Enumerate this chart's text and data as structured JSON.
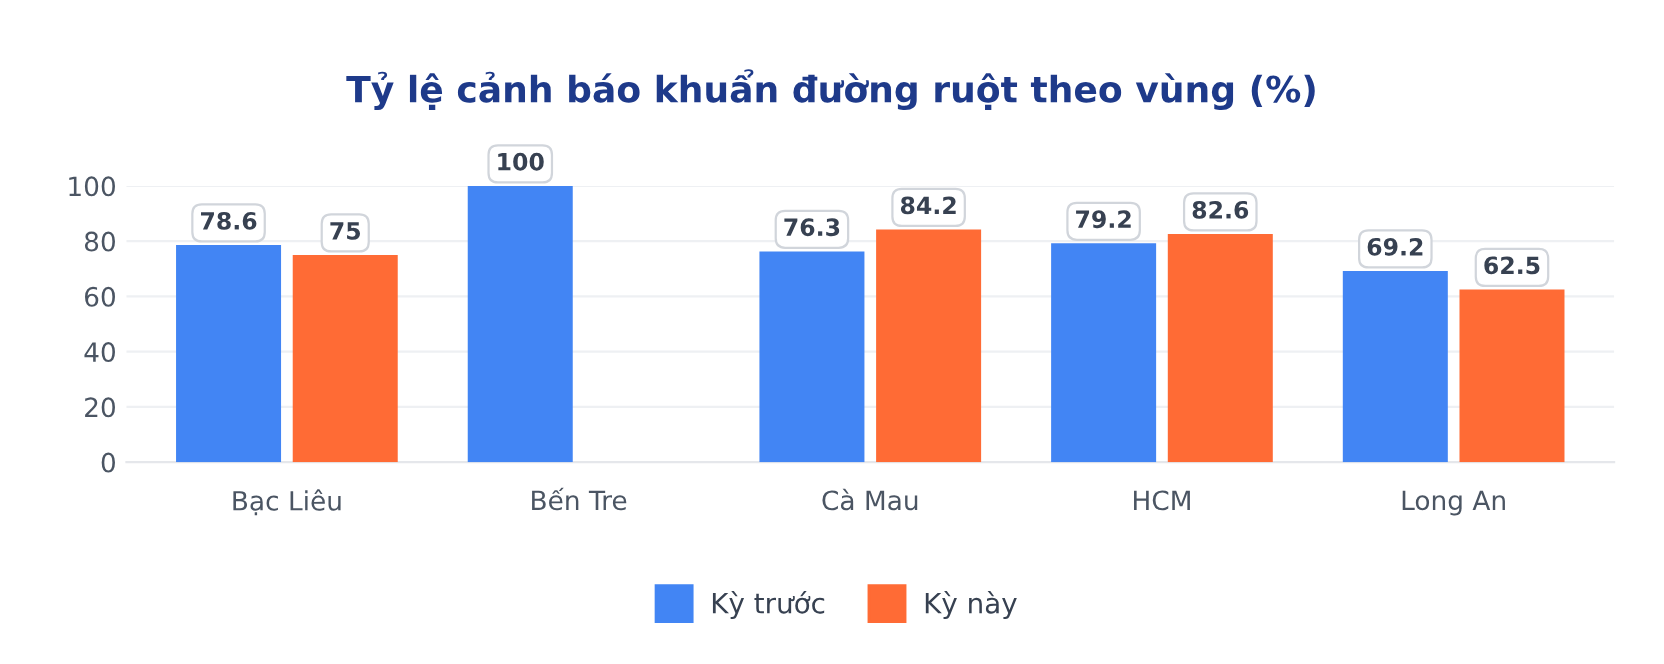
{
  "chart_data": {
    "type": "bar",
    "title": "Tỷ lệ cảnh báo khuẩn đường ruột theo vùng (%)",
    "categories": [
      "Bạc Liêu",
      "Bến Tre",
      "Cà Mau",
      "HCM",
      "Long An"
    ],
    "series": [
      {
        "name": "Kỳ trước",
        "color": "#4285f4",
        "values": [
          78.6,
          100,
          76.3,
          79.2,
          69.2
        ]
      },
      {
        "name": "Kỳ này",
        "color": "#ff6b35",
        "values": [
          75,
          null,
          84.2,
          82.6,
          62.5
        ]
      }
    ],
    "ylim": [
      0,
      100
    ],
    "yticks": [
      0,
      20,
      40,
      60,
      80,
      100
    ],
    "grid": "y",
    "legend": "bottom",
    "data_labels": true
  }
}
